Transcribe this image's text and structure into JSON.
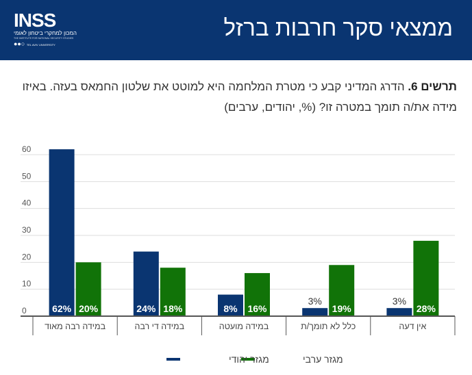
{
  "header": {
    "title": "ממצאי סקר חרבות ברזל",
    "logo": {
      "text": "INSS",
      "subtitle": "המכון למחקרי ביטחון לאומי",
      "english": "THE INSTITUTE FOR NATIONAL SECURITY STUDIES",
      "university": "TEL AVIV UNIVERSITY"
    }
  },
  "caption": {
    "label": "תרשים 6.",
    "text": " הדרג המדיני קבע כי מטרת המלחמה היא למוטט את שלטון החמאס בעזה. באיזו מידה את/ה תומך במטרה זו? (%, יהודים, ערבים)"
  },
  "chart_data": {
    "type": "bar",
    "categories": [
      "במידה רבה מאוד",
      "במידה די רבה",
      "במידה מועטה",
      "כלל לא תומך/ת",
      "אין דעה"
    ],
    "series": [
      {
        "name": "מגזר יהודי",
        "color": "#0a3571",
        "values": [
          62,
          24,
          8,
          3,
          3
        ],
        "labels": [
          "62%",
          "24%",
          "8%",
          "3%",
          "3%"
        ]
      },
      {
        "name": "מגזר ערבי",
        "color": "#117308",
        "values": [
          20,
          18,
          16,
          19,
          28
        ],
        "labels": [
          "20%",
          "18%",
          "16%",
          "19%",
          "28%"
        ]
      }
    ],
    "yticks": [
      0,
      10,
      20,
      30,
      40,
      50,
      60
    ],
    "ylim": [
      0,
      60
    ],
    "grid": true,
    "legend": "bottom"
  }
}
